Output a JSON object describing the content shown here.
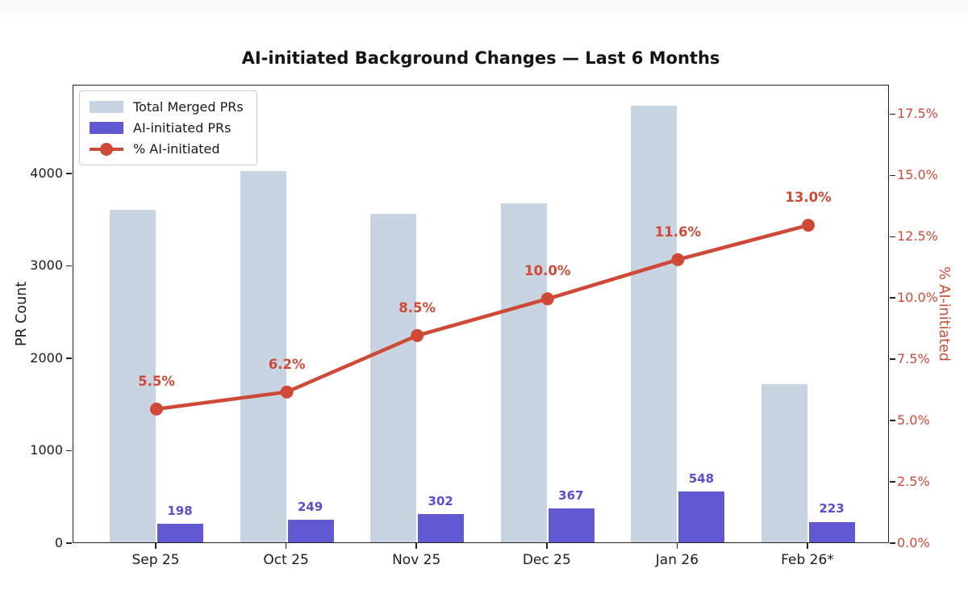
{
  "title": "AI-initiated Background Changes — Last 6 Months",
  "chart_data": {
    "type": "bar",
    "subtype": "grouped bars with overlaid line on secondary axis",
    "categories": [
      "Sep 25",
      "Oct 25",
      "Nov 25",
      "Dec 25",
      "Jan 26",
      "Feb 26*"
    ],
    "series": [
      {
        "name": "Total Merged PRs",
        "type": "bar",
        "axis": "left",
        "color": "#c9d4e2",
        "values": [
          3600,
          4016,
          3553,
          3670,
          4724,
          1715
        ]
      },
      {
        "name": "AI-initiated PRs",
        "type": "bar",
        "axis": "left",
        "color": "#6159d1",
        "label_color": "#5a4ecf",
        "values": [
          198,
          249,
          302,
          367,
          548,
          223
        ],
        "value_labels": [
          "198",
          "249",
          "302",
          "367",
          "548",
          "223"
        ]
      },
      {
        "name": "% AI-initiated",
        "type": "line",
        "axis": "right",
        "color": "#ce4a37",
        "values": [
          5.5,
          6.2,
          8.5,
          10.0,
          11.6,
          13.0
        ],
        "value_labels": [
          "5.5%",
          "6.2%",
          "8.5%",
          "10.0%",
          "11.6%",
          "13.0%"
        ]
      }
    ],
    "left_axis": {
      "label": "PR Count",
      "tick_labels": [
        "0",
        "1000",
        "2000",
        "3000",
        "4000"
      ],
      "tick_values": [
        0,
        1000,
        2000,
        3000,
        4000
      ],
      "range": [
        0,
        4960
      ]
    },
    "right_axis": {
      "label": "% AI-initiated",
      "color": "#ce4a37",
      "tick_labels": [
        "0.0%",
        "2.5%",
        "5.0%",
        "7.5%",
        "10.0%",
        "12.5%",
        "15.0%",
        "17.5%"
      ],
      "tick_values": [
        0,
        2.5,
        5,
        7.5,
        10,
        12.5,
        15,
        17.5
      ],
      "range": [
        0,
        18.7
      ]
    },
    "legend": {
      "position": "upper left",
      "entries": [
        "Total Merged PRs",
        "AI-initiated PRs",
        "% AI-initiated"
      ]
    },
    "grid": false
  }
}
